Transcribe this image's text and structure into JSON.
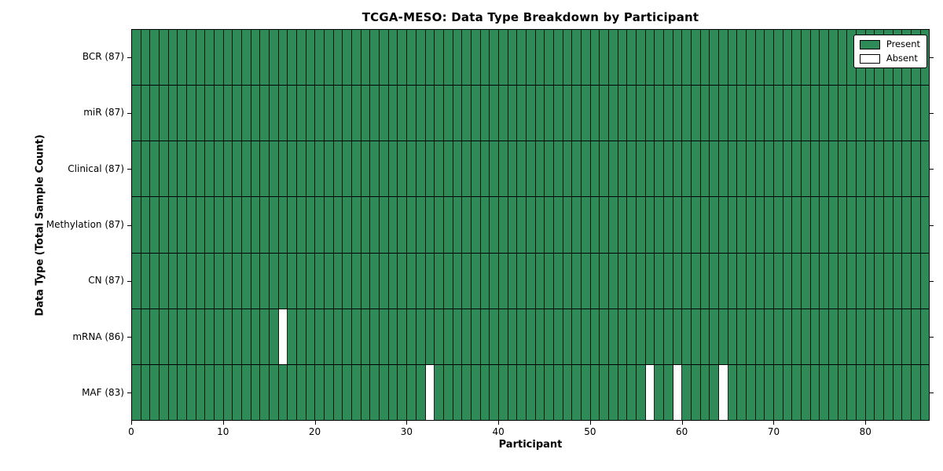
{
  "chart_data": {
    "type": "heatmap",
    "title": "TCGA-MESO: Data Type Breakdown by Participant",
    "xlabel": "Participant",
    "ylabel": "Data Type (Total Sample Count)",
    "n_participants": 87,
    "xlim": [
      0,
      87
    ],
    "x_ticks": [
      0,
      10,
      20,
      30,
      40,
      50,
      60,
      70,
      80
    ],
    "grid": false,
    "rows": [
      {
        "label": "BCR (87)",
        "data_type": "BCR",
        "present_count": 87,
        "absent_participants": []
      },
      {
        "label": "miR (87)",
        "data_type": "miR",
        "present_count": 87,
        "absent_participants": []
      },
      {
        "label": "Clinical (87)",
        "data_type": "Clinical",
        "present_count": 87,
        "absent_participants": []
      },
      {
        "label": "Methylation (87)",
        "data_type": "Methylation",
        "present_count": 87,
        "absent_participants": []
      },
      {
        "label": "CN (87)",
        "data_type": "CN",
        "present_count": 87,
        "absent_participants": []
      },
      {
        "label": "mRNA (86)",
        "data_type": "mRNA",
        "present_count": 86,
        "absent_participants": [
          16
        ]
      },
      {
        "label": "MAF (83)",
        "data_type": "MAF",
        "present_count": 83,
        "absent_participants": [
          32,
          56,
          59,
          64
        ]
      }
    ],
    "legend": {
      "position": "upper right",
      "entries": [
        {
          "label": "Present",
          "color": "#2e8b57"
        },
        {
          "label": "Absent",
          "color": "#ffffff"
        }
      ]
    },
    "colors": {
      "present": "#2e8b57",
      "absent": "#ffffff",
      "grid_line": "#000000",
      "background": "#ffffff"
    }
  }
}
